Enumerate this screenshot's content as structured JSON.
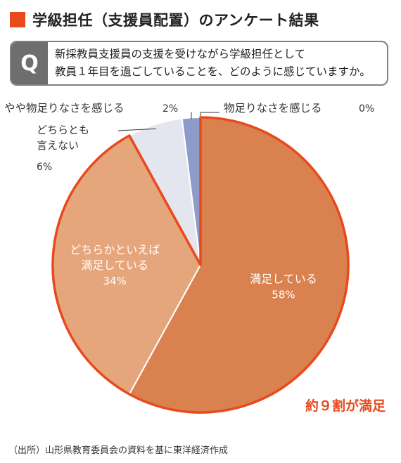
{
  "header": {
    "title": "学級担任（支援員配置）のアンケート結果",
    "accent_color": "#e8491d"
  },
  "question": {
    "badge": "Q",
    "line1": "新採教員支援員の支援を受けながら学級担任として",
    "line2": "教員１年目を過ごしていることを、どのように感じていますか。"
  },
  "chart_data": {
    "type": "pie",
    "slices": [
      {
        "lines": [
          "満足している"
        ],
        "value": 58,
        "value_label": "58%",
        "color": "#d9824f",
        "label_color": "#ffffff"
      },
      {
        "lines": [
          "どちらかといえば",
          "満足している"
        ],
        "value": 34,
        "value_label": "34%",
        "color": "#e5a67c",
        "label_color": "#ffffff"
      },
      {
        "lines": [
          "どちらとも",
          "言えない"
        ],
        "value": 6,
        "value_label": "6%",
        "color": "#e3e6ee",
        "label_color": "#333333"
      },
      {
        "lines": [
          "やや物足りなさを感じる"
        ],
        "value": 2,
        "value_label": "2%",
        "color": "#8d9bcb",
        "label_color": "#333333"
      },
      {
        "lines": [
          "物足りなさを感じる"
        ],
        "value": 0,
        "value_label": "0%",
        "color": "#8d9bcb",
        "label_color": "#333333"
      }
    ],
    "start_angle_deg": 0,
    "direction": "clockwise",
    "highlight": {
      "text": "約９割が満足",
      "color": "#e8491d",
      "covers_slices": [
        0,
        1
      ]
    }
  },
  "footer": {
    "source": "（出所）山形県教育委員会の資料を基に東洋経済作成"
  }
}
